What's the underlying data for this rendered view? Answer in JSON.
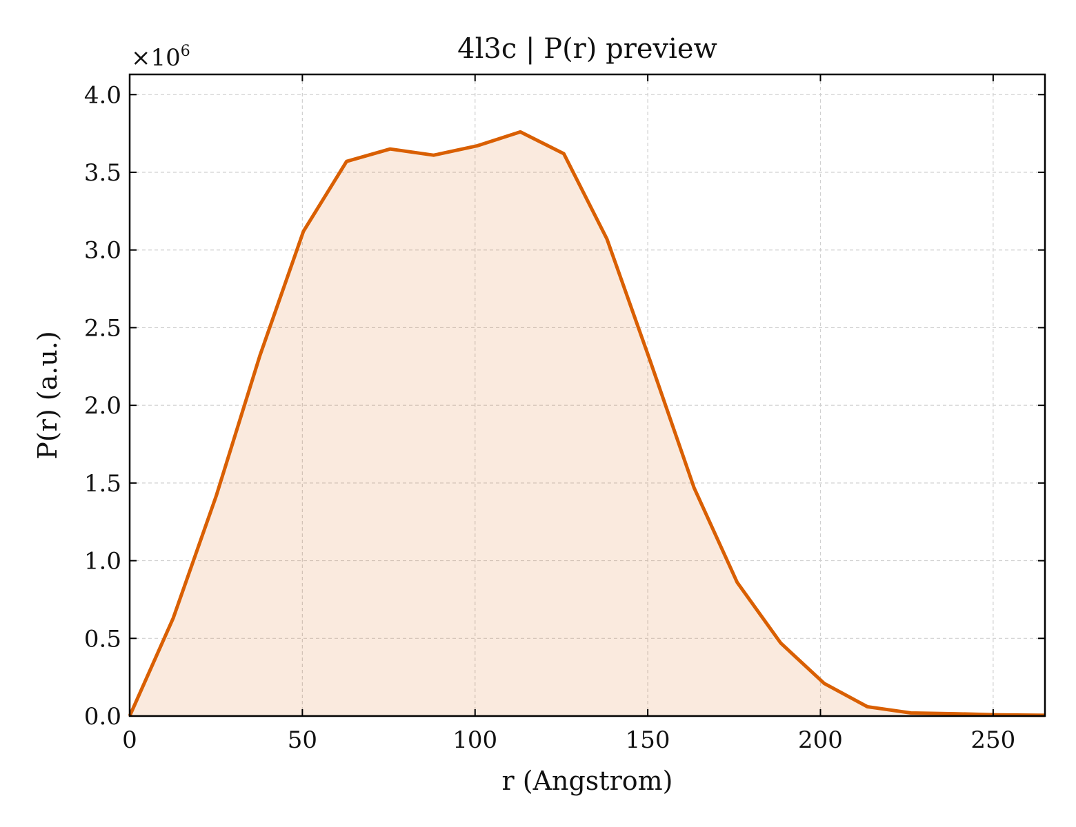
{
  "chart_data": {
    "type": "area",
    "title": "4l3c | P(r) preview",
    "xlabel": "r (Angstrom)",
    "ylabel": "P(r) (a.u.)",
    "y_offset_label": "×10",
    "y_offset_exponent": "6",
    "xlim": [
      0,
      265
    ],
    "ylim": [
      0,
      4.13
    ],
    "y_scale_factor": 1000000,
    "x_ticks": [
      0,
      50,
      100,
      150,
      200,
      250
    ],
    "x_tick_labels": [
      "0",
      "50",
      "100",
      "150",
      "200",
      "250"
    ],
    "y_ticks": [
      0,
      0.5,
      1.0,
      1.5,
      2.0,
      2.5,
      3.0,
      3.5,
      4.0
    ],
    "y_tick_labels": [
      "0.0",
      "0.5",
      "1.0",
      "1.5",
      "2.0",
      "2.5",
      "3.0",
      "3.5",
      "4.0"
    ],
    "grid": true,
    "colors": {
      "line": "#D95F02",
      "fill": "#D95F02",
      "fill_opacity": 0.13,
      "frame": "#000000"
    },
    "series": [
      {
        "x": [
          0,
          12.6,
          25.1,
          37.7,
          50.3,
          62.8,
          75.4,
          88.0,
          100.5,
          113.1,
          125.7,
          138.2,
          150.8,
          163.4,
          175.9,
          188.5,
          201.1,
          213.6,
          226.2,
          238.8,
          251.3,
          265.0
        ],
        "y": [
          0.0,
          0.63,
          1.42,
          2.32,
          3.12,
          3.57,
          3.65,
          3.61,
          3.67,
          3.76,
          3.62,
          3.07,
          2.28,
          1.47,
          0.86,
          0.47,
          0.21,
          0.06,
          0.02,
          0.015,
          0.008,
          0.005
        ]
      }
    ]
  }
}
